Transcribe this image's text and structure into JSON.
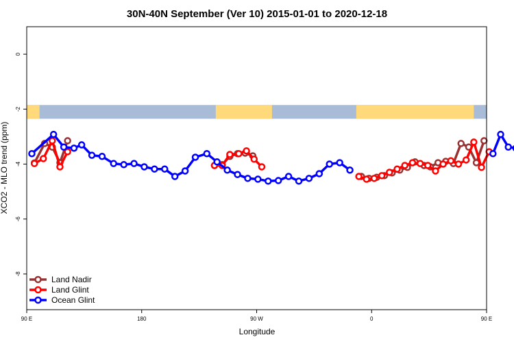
{
  "chart_data": {
    "type": "line",
    "title": "30N-40N September (Ver 10)   2015-01-01 to 2020-12-18",
    "xlabel": "Longitude",
    "ylabel": "XCO2 - MLO trend (ppm)",
    "xlim": [
      90,
      450
    ],
    "ylim": [
      -9.3,
      1
    ],
    "x_ticks": [
      {
        "value": 90,
        "label": "90 E"
      },
      {
        "value": 180,
        "label": "180"
      },
      {
        "value": 270,
        "label": "90 W"
      },
      {
        "value": 360,
        "label": "0"
      },
      {
        "value": 450,
        "label": "90 E"
      },
      {
        "value": 540,
        "label": "180"
      }
    ],
    "y_ticks": [
      {
        "value": 0,
        "label": "0"
      },
      {
        "value": -2,
        "label": "-2"
      },
      {
        "value": -4,
        "label": "-4"
      },
      {
        "value": -6,
        "label": "-6"
      },
      {
        "value": -8,
        "label": "-8"
      }
    ],
    "grid": false,
    "legend_position": "bottom-left",
    "background_map": {
      "description": "latitude band strip 30N-40N",
      "y_range": [
        -2.35,
        -1.85
      ],
      "ocean_color": "#a8bcd8",
      "land_color": "#ffd97a",
      "land_segments": [
        [
          90,
          100
        ],
        [
          238,
          282
        ],
        [
          348,
          440
        ]
      ]
    },
    "series": [
      {
        "name": "Land Nadir",
        "color": "#993333",
        "segments": [
          [
            [
              96,
              -3.96
            ],
            [
              104,
              -3.25
            ],
            [
              110,
              -3.38
            ],
            [
              116,
              -3.95
            ],
            [
              122,
              -3.15
            ]
          ],
          [
            [
              237,
              -4.05
            ],
            [
              243,
              -4.02
            ],
            [
              249,
              -3.72
            ],
            [
              255,
              -3.62
            ],
            [
              261,
              -3.6
            ],
            [
              267,
              -3.7
            ]
          ],
          [
            [
              352,
              -4.45
            ],
            [
              358,
              -4.52
            ],
            [
              364,
              -4.48
            ],
            [
              370,
              -4.42
            ],
            [
              376,
              -4.32
            ],
            [
              382,
              -4.22
            ],
            [
              388,
              -4.12
            ],
            [
              394,
              -3.92
            ],
            [
              401,
              -4.05
            ],
            [
              406,
              -4.1
            ],
            [
              412,
              -3.95
            ],
            [
              418,
              -3.9
            ],
            [
              424,
              -3.98
            ],
            [
              430,
              -3.25
            ],
            [
              436,
              -3.38
            ],
            [
              442,
              -3.95
            ],
            [
              448,
              -3.15
            ]
          ]
        ]
      },
      {
        "name": "Land Glint",
        "color": "#ff0000",
        "segments": [
          [
            [
              96,
              -3.98
            ],
            [
              103,
              -3.8
            ],
            [
              110,
              -3.15
            ],
            [
              116,
              -4.1
            ],
            [
              122,
              -3.55
            ]
          ],
          [
            [
              237,
              -4.05
            ],
            [
              243,
              -4.05
            ],
            [
              249,
              -3.65
            ],
            [
              256,
              -3.62
            ],
            [
              262,
              -3.52
            ],
            [
              268,
              -3.82
            ],
            [
              274,
              -4.1
            ]
          ],
          [
            [
              350,
              -4.45
            ],
            [
              356,
              -4.55
            ],
            [
              362,
              -4.52
            ],
            [
              368,
              -4.42
            ],
            [
              374,
              -4.3
            ],
            [
              380,
              -4.18
            ],
            [
              386,
              -4.05
            ],
            [
              392,
              -3.95
            ],
            [
              398,
              -3.98
            ],
            [
              404,
              -4.05
            ],
            [
              410,
              -4.25
            ],
            [
              416,
              -4.0
            ],
            [
              422,
              -3.88
            ],
            [
              428,
              -4.0
            ],
            [
              434,
              -3.85
            ],
            [
              440,
              -3.2
            ],
            [
              446,
              -4.12
            ],
            [
              452,
              -3.55
            ]
          ]
        ]
      },
      {
        "name": "Ocean Glint",
        "color": "#0000ff",
        "segments": [
          [
            [
              94,
              -3.62
            ],
            [
              111,
              -2.92
            ],
            [
              119,
              -3.38
            ],
            [
              127,
              -3.42
            ],
            [
              133,
              -3.3
            ],
            [
              141,
              -3.68
            ],
            [
              149,
              -3.72
            ],
            [
              158,
              -3.98
            ],
            [
              166,
              -4.02
            ],
            [
              174,
              -3.98
            ],
            [
              182,
              -4.1
            ],
            [
              190,
              -4.18
            ],
            [
              198,
              -4.18
            ],
            [
              206,
              -4.45
            ],
            [
              214,
              -4.25
            ],
            [
              222,
              -3.75
            ],
            [
              231,
              -3.62
            ],
            [
              239,
              -3.92
            ],
            [
              247,
              -4.22
            ],
            [
              255,
              -4.38
            ],
            [
              263,
              -4.52
            ],
            [
              271,
              -4.55
            ],
            [
              279,
              -4.62
            ],
            [
              287,
              -4.6
            ],
            [
              295,
              -4.45
            ],
            [
              303,
              -4.62
            ],
            [
              311,
              -4.52
            ],
            [
              319,
              -4.35
            ],
            [
              327,
              -4.0
            ],
            [
              335,
              -3.95
            ],
            [
              343,
              -4.22
            ]
          ],
          [
            [
              455,
              -3.62
            ],
            [
              461,
              -2.92
            ],
            [
              467,
              -3.38
            ],
            [
              473,
              -3.42
            ],
            [
              479,
              -3.28
            ],
            [
              485,
              -3.68
            ],
            [
              491,
              -3.72
            ],
            [
              497,
              -4.0
            ]
          ]
        ]
      }
    ]
  }
}
